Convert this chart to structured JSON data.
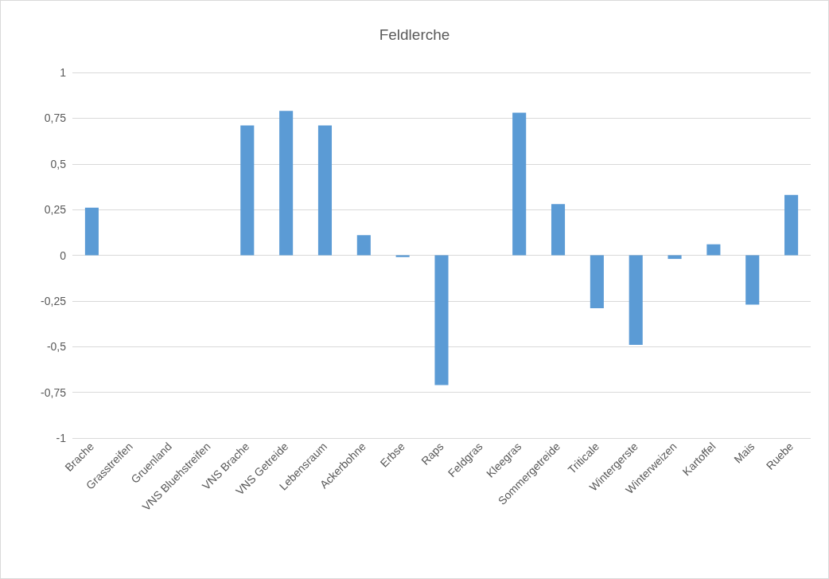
{
  "chart_data": {
    "type": "bar",
    "title": "Feldlerche",
    "categories": [
      "Brache",
      "Grasstreifen",
      "Gruenland",
      "VNS Bluehstreifen",
      "VNS Brache",
      "VNS Getreide",
      "Lebensraum",
      "Ackerbohne",
      "Erbse",
      "Raps",
      "Feldgras",
      "Kleegras",
      "Sommergetreide",
      "Triticale",
      "Wintergerste",
      "Winterweizen",
      "Kartoffel",
      "Mais",
      "Ruebe"
    ],
    "values": [
      0.26,
      null,
      null,
      null,
      0.71,
      0.79,
      0.71,
      0.11,
      -0.01,
      -0.71,
      null,
      0.78,
      0.28,
      -0.29,
      -0.49,
      -0.02,
      0.06,
      -0.27,
      0.33
    ],
    "color": "#5b9bd5",
    "ylim": [
      -1,
      1
    ],
    "yticks": [
      -1,
      {
        "value": -0.75,
        "label": "-0,75"
      },
      {
        "value": -0.5,
        "label": "-0,5"
      },
      {
        "value": -0.25,
        "label": "-0,25"
      },
      0,
      {
        "value": 0.25,
        "label": "0,25"
      },
      {
        "value": 0.5,
        "label": "0,5"
      },
      {
        "value": 0.75,
        "label": "0,75"
      },
      1
    ],
    "grid": "y"
  }
}
